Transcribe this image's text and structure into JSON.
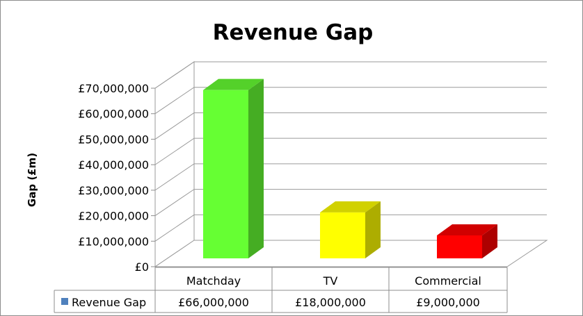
{
  "chart_data": {
    "type": "bar",
    "title": "Revenue Gap",
    "xlabel": "",
    "ylabel": "Gap (£m)",
    "categories": [
      "Matchday",
      "TV",
      "Commercial"
    ],
    "series": [
      {
        "name": "Revenue Gap",
        "values": [
          66000000,
          18000000,
          9000000
        ],
        "value_labels": [
          "£66,000,000",
          "£18,000,000",
          "£9,000,000"
        ],
        "colors": [
          "#66ff33",
          "#ffff00",
          "#ff0000"
        ]
      }
    ],
    "ylim": [
      0,
      70000000
    ],
    "y_ticks": [
      0,
      10000000,
      20000000,
      30000000,
      40000000,
      50000000,
      60000000,
      70000000
    ],
    "y_tick_labels": [
      "£0",
      "£10,000,000",
      "£20,000,000",
      "£30,000,000",
      "£40,000,000",
      "£50,000,000",
      "£60,000,000",
      "£70,000,000"
    ],
    "grid": true,
    "view": "3d",
    "legend": "data-table",
    "legend_color": "#4f81bd"
  }
}
